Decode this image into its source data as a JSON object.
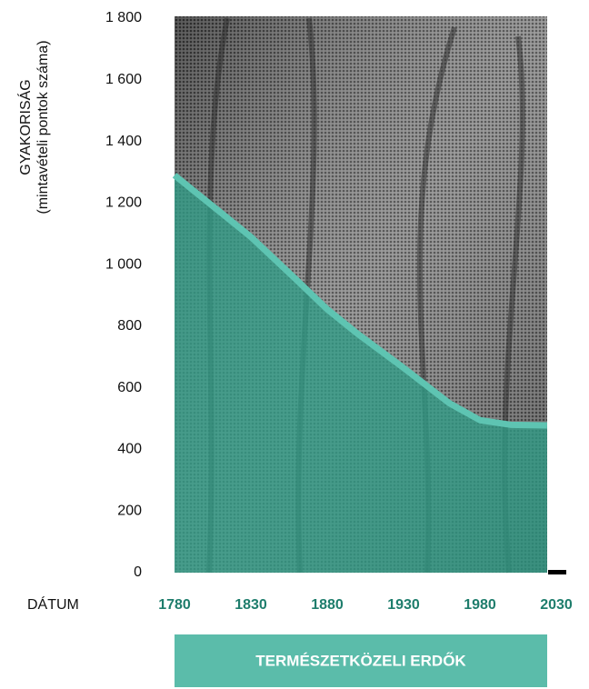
{
  "chart_data": {
    "type": "area",
    "y_label": [
      "GYAKORISÁG",
      "(mintavételi pontok száma)"
    ],
    "x_label": "DÁTUM",
    "band_label": "TERMÉSZETKÖZELI ERDŐK",
    "x": [
      1780,
      1800,
      1830,
      1860,
      1880,
      1900,
      1930,
      1960,
      1980,
      2000,
      2024
    ],
    "series": [
      {
        "color": "#2f9c86",
        "line_color": "#5ec4b2",
        "values": [
          1290,
          1210,
          1090,
          950,
          855,
          775,
          665,
          550,
          495,
          480,
          478
        ]
      }
    ],
    "xlim": [
      1780,
      2030
    ],
    "xticks": [
      1780,
      1830,
      1880,
      1930,
      1980,
      2030
    ],
    "ylim": [
      0,
      1800
    ],
    "yticks": [
      0,
      200,
      400,
      600,
      800,
      {
        "value": 1000,
        "label": "1 000"
      },
      {
        "value": 1200,
        "label": "1 200"
      },
      {
        "value": 1400,
        "label": "1 400"
      },
      {
        "value": 1600,
        "label": "1 600"
      },
      {
        "value": 1800,
        "label": "1 800"
      }
    ],
    "tick_color": "#1e7d6c",
    "band_color": "#5bbcaa"
  }
}
